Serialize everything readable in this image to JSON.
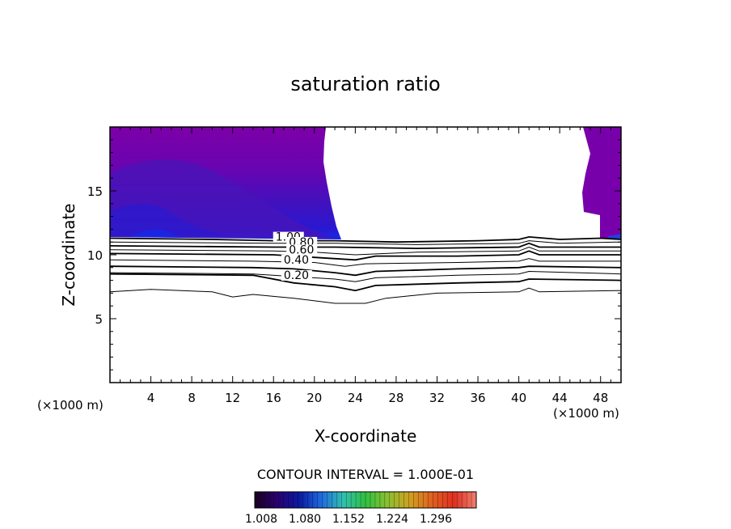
{
  "chart_data": {
    "type": "heatmap",
    "title": "saturation ratio",
    "xlabel": "X-coordinate",
    "ylabel": "Z-coordinate",
    "x_unit": "(×1000 m)",
    "y_unit": "(×1000 m)",
    "xlim": [
      0,
      50
    ],
    "ylim": [
      0,
      20
    ],
    "x_ticks": [
      4,
      8,
      12,
      16,
      20,
      24,
      28,
      32,
      36,
      40,
      44,
      48
    ],
    "y_ticks": [
      5,
      10,
      15
    ],
    "contour_interval": "CONTOUR INTERVAL = 1.000E-01",
    "contour_labels": [
      {
        "text": "1.00",
        "x": 16.2,
        "y": 11.1
      },
      {
        "text": "0.80",
        "x": 17.5,
        "y": 10.7
      },
      {
        "text": "0.60",
        "x": 17.5,
        "y": 10.1
      },
      {
        "text": "0.40",
        "x": 17.0,
        "y": 9.3
      },
      {
        "text": "0.20",
        "x": 17.0,
        "y": 8.1
      }
    ],
    "contour_lines": [
      {
        "level": 1.0,
        "points": [
          [
            0,
            11.3
          ],
          [
            10,
            11.2
          ],
          [
            16,
            11.1
          ],
          [
            22,
            11.1
          ],
          [
            28,
            11.0
          ],
          [
            36,
            11.1
          ],
          [
            40,
            11.2
          ],
          [
            41,
            11.4
          ],
          [
            44,
            11.2
          ],
          [
            48,
            11.3
          ],
          [
            50,
            11.2
          ]
        ]
      },
      {
        "level": 0.9,
        "points": [
          [
            0,
            11.0
          ],
          [
            16,
            10.9
          ],
          [
            22,
            10.9
          ],
          [
            30,
            10.8
          ],
          [
            40,
            10.9
          ],
          [
            41,
            11.1
          ],
          [
            44,
            10.9
          ],
          [
            50,
            11.0
          ]
        ]
      },
      {
        "level": 0.8,
        "points": [
          [
            0,
            10.7
          ],
          [
            16,
            10.6
          ],
          [
            22,
            10.6
          ],
          [
            30,
            10.5
          ],
          [
            40,
            10.6
          ],
          [
            41,
            10.9
          ],
          [
            42,
            10.6
          ],
          [
            50,
            10.6
          ]
        ]
      },
      {
        "level": 0.7,
        "points": [
          [
            0,
            10.4
          ],
          [
            16,
            10.3
          ],
          [
            20,
            10.2
          ],
          [
            24,
            10.0
          ],
          [
            30,
            10.2
          ],
          [
            40,
            10.3
          ],
          [
            41,
            10.6
          ],
          [
            42,
            10.3
          ],
          [
            50,
            10.3
          ]
        ]
      },
      {
        "level": 0.6,
        "points": [
          [
            0,
            10.1
          ],
          [
            16,
            10.0
          ],
          [
            20,
            9.8
          ],
          [
            24,
            9.6
          ],
          [
            26,
            9.9
          ],
          [
            34,
            9.9
          ],
          [
            40,
            10.0
          ],
          [
            41,
            10.3
          ],
          [
            42,
            10.0
          ],
          [
            50,
            10.0
          ]
        ]
      },
      {
        "level": 0.5,
        "points": [
          [
            0,
            9.6
          ],
          [
            14,
            9.5
          ],
          [
            20,
            9.4
          ],
          [
            23,
            9.1
          ],
          [
            25,
            9.3
          ],
          [
            34,
            9.4
          ],
          [
            40,
            9.5
          ],
          [
            41,
            9.7
          ],
          [
            42,
            9.5
          ],
          [
            50,
            9.5
          ]
        ]
      },
      {
        "level": 0.4,
        "points": [
          [
            0,
            9.1
          ],
          [
            14,
            9.0
          ],
          [
            18,
            8.9
          ],
          [
            22,
            8.6
          ],
          [
            24,
            8.4
          ],
          [
            26,
            8.7
          ],
          [
            34,
            8.9
          ],
          [
            40,
            9.0
          ],
          [
            41,
            9.1
          ],
          [
            50,
            9.0
          ]
        ]
      },
      {
        "level": 0.3,
        "points": [
          [
            0,
            8.6
          ],
          [
            14,
            8.5
          ],
          [
            18,
            8.3
          ],
          [
            22,
            8.1
          ],
          [
            24,
            7.9
          ],
          [
            26,
            8.2
          ],
          [
            34,
            8.4
          ],
          [
            40,
            8.5
          ],
          [
            41,
            8.7
          ],
          [
            50,
            8.5
          ]
        ]
      },
      {
        "level": 0.2,
        "points": [
          [
            0,
            8.5
          ],
          [
            14,
            8.4
          ],
          [
            18,
            7.8
          ],
          [
            22,
            7.5
          ],
          [
            24,
            7.2
          ],
          [
            26,
            7.6
          ],
          [
            34,
            7.8
          ],
          [
            40,
            7.9
          ],
          [
            41,
            8.1
          ],
          [
            50,
            8.0
          ]
        ]
      },
      {
        "level": 0.1,
        "points": [
          [
            0,
            7.1
          ],
          [
            4,
            7.3
          ],
          [
            10,
            7.1
          ],
          [
            12,
            6.7
          ],
          [
            14,
            6.9
          ],
          [
            18,
            6.6
          ],
          [
            22,
            6.2
          ],
          [
            25,
            6.2
          ],
          [
            27,
            6.6
          ],
          [
            32,
            7.0
          ],
          [
            40,
            7.1
          ],
          [
            41,
            7.4
          ],
          [
            42,
            7.1
          ],
          [
            50,
            7.2
          ]
        ]
      }
    ],
    "colorbar": {
      "ticks": [
        "1.008",
        "1.080",
        "1.152",
        "1.224",
        "1.296"
      ],
      "colors": [
        "#1a001f",
        "#2a0070",
        "#0a1aa0",
        "#1f6ae0",
        "#30c0b0",
        "#30c040",
        "#8ac030",
        "#d0a020",
        "#e06020",
        "#e03020",
        "#f08070"
      ]
    },
    "fill_colors": [
      "#7c00a8",
      "#6400b4",
      "#4c10b8",
      "#3a18c0",
      "#2a1ad0",
      "#1a20e0"
    ]
  }
}
